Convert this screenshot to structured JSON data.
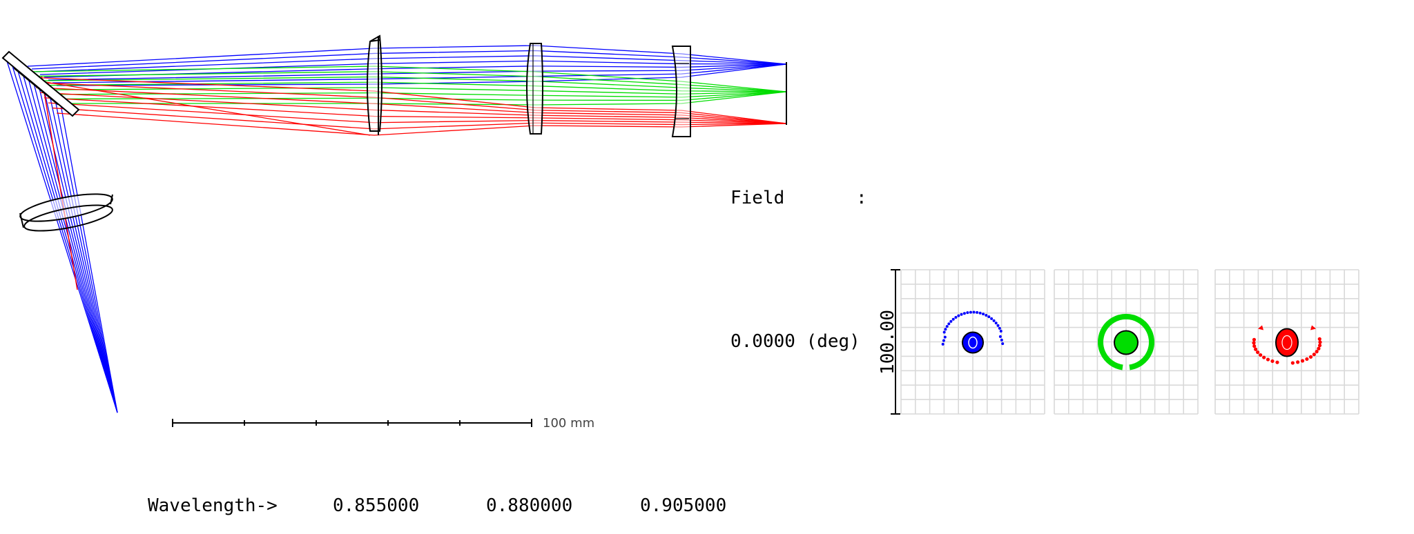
{
  "colors": {
    "wave_1": "#0000ff",
    "wave_2": "#00dd00",
    "wave_3": "#ff0000",
    "grid": "#d9d9d9",
    "outline": "#000000"
  },
  "layout_view": {
    "scale_bar": {
      "label": "100 mm"
    }
  },
  "spot_diagram": {
    "field_header": "Field",
    "field_colon": ":",
    "field_value": "0.0000 (deg)",
    "scale_label": "100.00",
    "panels": [
      {
        "name": "spot-0.855",
        "color_key": "wave_1"
      },
      {
        "name": "spot-0.880",
        "color_key": "wave_2"
      },
      {
        "name": "spot-0.905",
        "color_key": "wave_3"
      }
    ]
  },
  "wavelength_row": {
    "label": "Wavelength->",
    "values": [
      "0.855000",
      "0.880000",
      "0.905000"
    ]
  }
}
